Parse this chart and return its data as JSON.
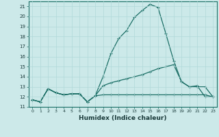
{
  "xlabel": "Humidex (Indice chaleur)",
  "xlim": [
    -0.5,
    23.5
  ],
  "ylim": [
    11,
    21.5
  ],
  "yticks": [
    11,
    12,
    13,
    14,
    15,
    16,
    17,
    18,
    19,
    20,
    21
  ],
  "xticks": [
    0,
    1,
    2,
    3,
    4,
    5,
    6,
    7,
    8,
    9,
    10,
    11,
    12,
    13,
    14,
    15,
    16,
    17,
    18,
    19,
    20,
    21,
    22,
    23
  ],
  "bg_color": "#cce9e9",
  "line_color": "#1a6e65",
  "grid_color": "#b0d8d8",
  "series": {
    "line1": {
      "x": [
        0,
        1,
        2,
        3,
        4,
        5,
        6,
        7,
        8,
        9,
        10,
        11,
        12,
        13,
        14,
        15,
        16,
        17,
        18,
        19,
        20,
        21,
        22,
        23
      ],
      "y": [
        11.7,
        11.5,
        12.8,
        12.4,
        12.2,
        12.3,
        12.3,
        11.5,
        12.1,
        14.0,
        16.3,
        17.8,
        18.6,
        19.9,
        20.6,
        21.2,
        20.9,
        18.3,
        15.6,
        13.5,
        13.0,
        13.1,
        12.0,
        12.0
      ]
    },
    "line2": {
      "x": [
        0,
        1,
        2,
        3,
        4,
        5,
        6,
        7,
        8,
        9,
        10,
        11,
        12,
        13,
        14,
        15,
        16,
        17,
        18,
        19,
        20,
        21,
        22,
        23
      ],
      "y": [
        11.7,
        11.5,
        12.8,
        12.4,
        12.2,
        12.3,
        12.3,
        11.5,
        12.1,
        13.1,
        13.4,
        13.6,
        13.8,
        14.0,
        14.2,
        14.5,
        14.8,
        15.0,
        15.2,
        13.5,
        13.0,
        13.0,
        13.0,
        12.0
      ]
    },
    "line3": {
      "x": [
        0,
        1,
        2,
        3,
        4,
        5,
        6,
        7,
        8,
        9,
        10,
        11,
        12,
        13,
        14,
        15,
        16,
        17,
        18,
        19,
        20,
        21,
        22,
        23
      ],
      "y": [
        11.7,
        11.5,
        12.8,
        12.4,
        12.2,
        12.3,
        12.3,
        11.5,
        12.1,
        12.2,
        12.2,
        12.2,
        12.2,
        12.2,
        12.2,
        12.2,
        12.2,
        12.2,
        12.2,
        12.2,
        12.2,
        12.2,
        12.2,
        12.0
      ]
    }
  }
}
